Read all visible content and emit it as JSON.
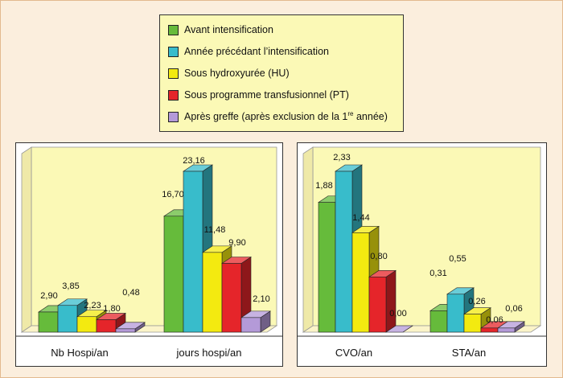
{
  "legend": {
    "items": [
      {
        "label": "Avant intensification",
        "color": "#66bb3b"
      },
      {
        "label": "Année précédant l’intensification",
        "color": "#38bccb"
      },
      {
        "label": "Sous hydroxyurée (HU)",
        "color": "#f3ea10"
      },
      {
        "label": "Sous programme transfusionnel (PT)",
        "color": "#e5252a"
      },
      {
        "label": "Après greffe (après exclusion de la 1",
        "sup": "re",
        "label_end": " année)",
        "color": "#b49ad8"
      }
    ]
  },
  "chart_data": [
    {
      "type": "bar",
      "categories": [
        "Nb Hospi/an",
        "jours hospi/an"
      ],
      "series": [
        {
          "name": "Avant intensification",
          "values": [
            2.9,
            16.7
          ],
          "labels": [
            "2,90",
            "16,70"
          ]
        },
        {
          "name": "Année précédant l’intensification",
          "values": [
            3.85,
            23.16
          ],
          "labels": [
            "3,85",
            "23,16"
          ]
        },
        {
          "name": "Sous hydroxyurée (HU)",
          "values": [
            2.23,
            11.48
          ],
          "labels": [
            "2,23",
            "11,48"
          ]
        },
        {
          "name": "Sous programme transfusionnel (PT)",
          "values": [
            1.8,
            9.9
          ],
          "labels": [
            "1,80",
            "9,90"
          ]
        },
        {
          "name": "Après greffe (après exclusion de la 1re année)",
          "values": [
            0.48,
            2.1
          ],
          "labels": [
            "0,48",
            "2,10"
          ]
        }
      ],
      "ylim": [
        0,
        23.16
      ],
      "grid": false
    },
    {
      "type": "bar",
      "categories": [
        "CVO/an",
        "STA/an"
      ],
      "series": [
        {
          "name": "Avant intensification",
          "values": [
            1.88,
            0.31
          ],
          "labels": [
            "1,88",
            "0,31"
          ]
        },
        {
          "name": "Année précédant l’intensification",
          "values": [
            2.33,
            0.55
          ],
          "labels": [
            "2,33",
            "0,55"
          ]
        },
        {
          "name": "Sous hydroxyurée (HU)",
          "values": [
            1.44,
            0.26
          ],
          "labels": [
            "1,44",
            "0,26"
          ]
        },
        {
          "name": "Sous programme transfusionnel (PT)",
          "values": [
            0.8,
            0.06
          ],
          "labels": [
            "0,80",
            "0,06"
          ]
        },
        {
          "name": "Après greffe (après exclusion de la 1re année)",
          "values": [
            0.0,
            0.06
          ],
          "labels": [
            "0,00",
            "0,06"
          ]
        }
      ],
      "ylim": [
        0,
        2.33
      ],
      "grid": false
    }
  ]
}
